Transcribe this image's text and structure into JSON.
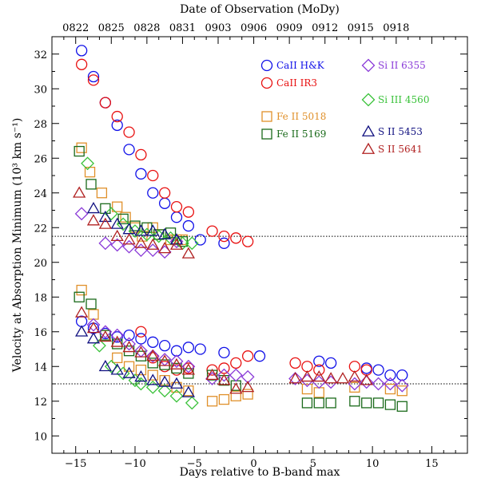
{
  "chart_data": {
    "type": "scatter",
    "xlabel": "Days relative to B-band max",
    "ylabel": "Velocity at Absorption Minimum (10³ km s⁻¹)",
    "top_xlabel": "Date of Observation (MoDy)",
    "xlim": [
      -17,
      18
    ],
    "ylim": [
      9,
      33
    ],
    "xticks": [
      -15,
      -10,
      -5,
      0,
      5,
      10,
      15
    ],
    "xtick_labels": [
      "−15",
      "−10",
      "−5",
      "0",
      "5",
      "10",
      "15"
    ],
    "yticks": [
      10,
      12,
      14,
      16,
      18,
      20,
      22,
      24,
      26,
      28,
      30,
      32
    ],
    "top_ticks": [
      -15,
      -12,
      -9,
      -6,
      -3,
      0,
      3,
      6,
      9,
      12,
      15
    ],
    "top_tick_labels": [
      "0822",
      "0825",
      "0828",
      "0831",
      "0903",
      "0906",
      "0909",
      "0912",
      "0915",
      "0918",
      ""
    ],
    "reference_lines": [
      21.5,
      13.0
    ],
    "series": [
      {
        "name": "CaII H&K",
        "marker": "circle",
        "color": "#1010e8",
        "legend_col": 0,
        "x": [
          -14.5,
          -13.5,
          -12.5,
          -11.5,
          -10.5,
          -9.5,
          -8.5,
          -7.5,
          -6.5,
          -5.5,
          -4.5,
          -2.5,
          -14.5,
          -13.5,
          -12.5,
          -11.5,
          -10.5,
          -9.5,
          -8.5,
          -7.5,
          -6.5,
          -5.5,
          -4.5,
          -2.5,
          0.5,
          5.5,
          6.5,
          9.5,
          10.5,
          11.5,
          12.5
        ],
        "y": [
          32.2,
          30.7,
          29.2,
          27.9,
          26.5,
          25.1,
          24.0,
          23.4,
          22.6,
          22.1,
          21.3,
          21.1,
          16.6,
          16.2,
          15.9,
          15.7,
          15.8,
          15.6,
          15.4,
          15.2,
          14.9,
          15.1,
          15.0,
          14.8,
          14.6,
          14.3,
          14.2,
          13.9,
          13.8,
          13.5,
          13.5
        ]
      },
      {
        "name": "CaII IR3",
        "marker": "circle",
        "color": "#e81010",
        "legend_col": 0,
        "x": [
          -14.5,
          -13.5,
          -12.5,
          -11.5,
          -10.5,
          -9.5,
          -8.5,
          -7.5,
          -6.5,
          -5.5,
          -3.5,
          -2.5,
          -1.5,
          -0.5,
          -9.5,
          -8.5,
          -7.5,
          -6.5,
          -5.5,
          -3.5,
          -2.5,
          -1.5,
          -0.5,
          3.5,
          4.5,
          5.5,
          8.5,
          9.5
        ],
        "y": [
          31.4,
          30.5,
          29.2,
          28.4,
          27.5,
          26.2,
          25.0,
          24.0,
          23.2,
          22.9,
          21.8,
          21.5,
          21.4,
          21.2,
          16.0,
          14.5,
          14.0,
          13.8,
          13.9,
          13.8,
          13.9,
          14.2,
          14.6,
          14.2,
          14.0,
          13.8,
          14.0,
          13.8
        ]
      },
      {
        "name": "Fe II 5018",
        "marker": "square",
        "color": "#e0902a",
        "legend_col": 0,
        "x": [
          -14.5,
          -13.8,
          -12.8,
          -11.5,
          -10.8,
          -10.0,
          -9.4,
          -8.5,
          -8.0,
          -7.0,
          -6.5,
          -6.0,
          -14.5,
          -13.5,
          -12.5,
          -11.5,
          -10.5,
          -9.5,
          -8.5,
          -7.5,
          -6.5,
          -5.5,
          -3.5,
          -2.5,
          -1.5,
          -0.5,
          4.5,
          5.5,
          8.5,
          11.5,
          12.5
        ],
        "y": [
          26.6,
          25.2,
          24.0,
          23.2,
          22.6,
          22.0,
          21.5,
          22.0,
          21.6,
          21.3,
          21.3,
          21.3,
          18.4,
          17.0,
          15.8,
          14.5,
          14.0,
          13.8,
          13.5,
          13.2,
          12.8,
          12.6,
          12.0,
          12.1,
          12.3,
          12.4,
          12.7,
          12.5,
          12.8,
          12.7,
          12.6
        ]
      },
      {
        "name": "Fe II 5169",
        "marker": "square",
        "color": "#1a6a1a",
        "legend_col": 0,
        "x": [
          -14.7,
          -13.7,
          -12.5,
          -11.0,
          -10.0,
          -9.0,
          -8.0,
          -7.0,
          -6.0,
          -14.7,
          -13.7,
          -12.5,
          -11.5,
          -10.5,
          -9.5,
          -8.5,
          -7.5,
          -6.5,
          -5.5,
          -3.5,
          -2.5,
          -1.5,
          4.5,
          5.5,
          6.5,
          8.5,
          9.5,
          10.5,
          11.5,
          12.5
        ],
        "y": [
          26.4,
          24.5,
          23.1,
          22.5,
          22.1,
          22.0,
          21.6,
          21.7,
          21.2,
          18.0,
          17.6,
          15.8,
          15.3,
          14.9,
          14.6,
          14.2,
          14.1,
          13.9,
          13.6,
          13.5,
          13.2,
          12.9,
          11.9,
          11.9,
          11.9,
          12.0,
          11.9,
          11.9,
          11.8,
          11.7
        ]
      },
      {
        "name": "Si II 6355",
        "marker": "diamond",
        "color": "#8a3ad8",
        "legend_col": 1,
        "x": [
          -14.5,
          -12.5,
          -11.5,
          -10.5,
          -9.5,
          -8.5,
          -7.5,
          -6.5,
          -13.5,
          -12.5,
          -11.5,
          -10.5,
          -9.5,
          -8.5,
          -7.5,
          -6.5,
          -5.5,
          -3.5,
          -2.5,
          -1.5,
          -0.5,
          3.5,
          4.5,
          5.5,
          6.5,
          8.5,
          9.5,
          10.5,
          11.5,
          12.5
        ],
        "y": [
          22.8,
          21.1,
          21.0,
          20.9,
          20.7,
          20.7,
          20.6,
          21.2,
          16.4,
          16.0,
          15.8,
          15.3,
          14.9,
          14.6,
          14.4,
          14.3,
          14.0,
          13.3,
          13.5,
          13.5,
          13.4,
          13.3,
          13.2,
          13.1,
          13.1,
          13.0,
          13.1,
          13.0,
          13.0,
          12.9
        ]
      },
      {
        "name": "Si III 4560",
        "marker": "diamond",
        "color": "#3ac23a",
        "legend_col": 1,
        "x": [
          -14.0,
          -12.0,
          -11.0,
          -10.0,
          -9.0,
          -8.0,
          -7.0,
          -6.0,
          -5.2,
          -13.0,
          -12.0,
          -11.0,
          -10.0,
          -9.5,
          -8.5,
          -7.5,
          -6.5,
          -5.2
        ],
        "y": [
          25.7,
          22.8,
          22.2,
          21.8,
          21.6,
          21.5,
          21.4,
          21.1,
          21.1,
          15.2,
          14.0,
          13.6,
          13.2,
          13.0,
          12.8,
          12.6,
          12.3,
          11.9
        ]
      },
      {
        "name": "S II 5453",
        "marker": "triangle",
        "color": "#101080",
        "legend_col": 1,
        "x": [
          -13.5,
          -12.5,
          -11.5,
          -10.5,
          -9.5,
          -8.5,
          -7.5,
          -6.5,
          -14.5,
          -13.5,
          -12.5,
          -11.5,
          -10.5,
          -9.5,
          -8.5,
          -7.5,
          -6.5,
          -5.5
        ],
        "y": [
          23.1,
          22.6,
          22.2,
          21.9,
          21.8,
          21.8,
          21.6,
          21.3,
          16.0,
          15.6,
          14.0,
          13.8,
          13.6,
          13.4,
          13.2,
          13.1,
          13.0,
          12.5
        ]
      },
      {
        "name": "S II 5641",
        "marker": "triangle",
        "color": "#b02020",
        "legend_col": 1,
        "x": [
          -14.7,
          -13.5,
          -12.5,
          -11.5,
          -10.5,
          -9.5,
          -8.5,
          -7.5,
          -6.5,
          -5.5,
          -14.5,
          -13.5,
          -12.5,
          -11.5,
          -10.5,
          -9.5,
          -8.5,
          -7.5,
          -6.5,
          -5.5,
          -3.5,
          -2.5,
          -1.5,
          -0.5,
          3.5,
          4.5,
          5.5,
          6.5,
          7.5,
          8.5,
          9.5
        ],
        "y": [
          24.0,
          22.4,
          22.2,
          21.5,
          21.3,
          21.1,
          21.0,
          20.8,
          21.0,
          20.5,
          17.1,
          16.2,
          15.7,
          15.4,
          15.1,
          14.8,
          14.6,
          14.3,
          14.1,
          13.8,
          13.5,
          13.2,
          12.7,
          12.8,
          13.3,
          13.4,
          13.4,
          13.3,
          13.3,
          13.4,
          13.2
        ]
      }
    ]
  }
}
